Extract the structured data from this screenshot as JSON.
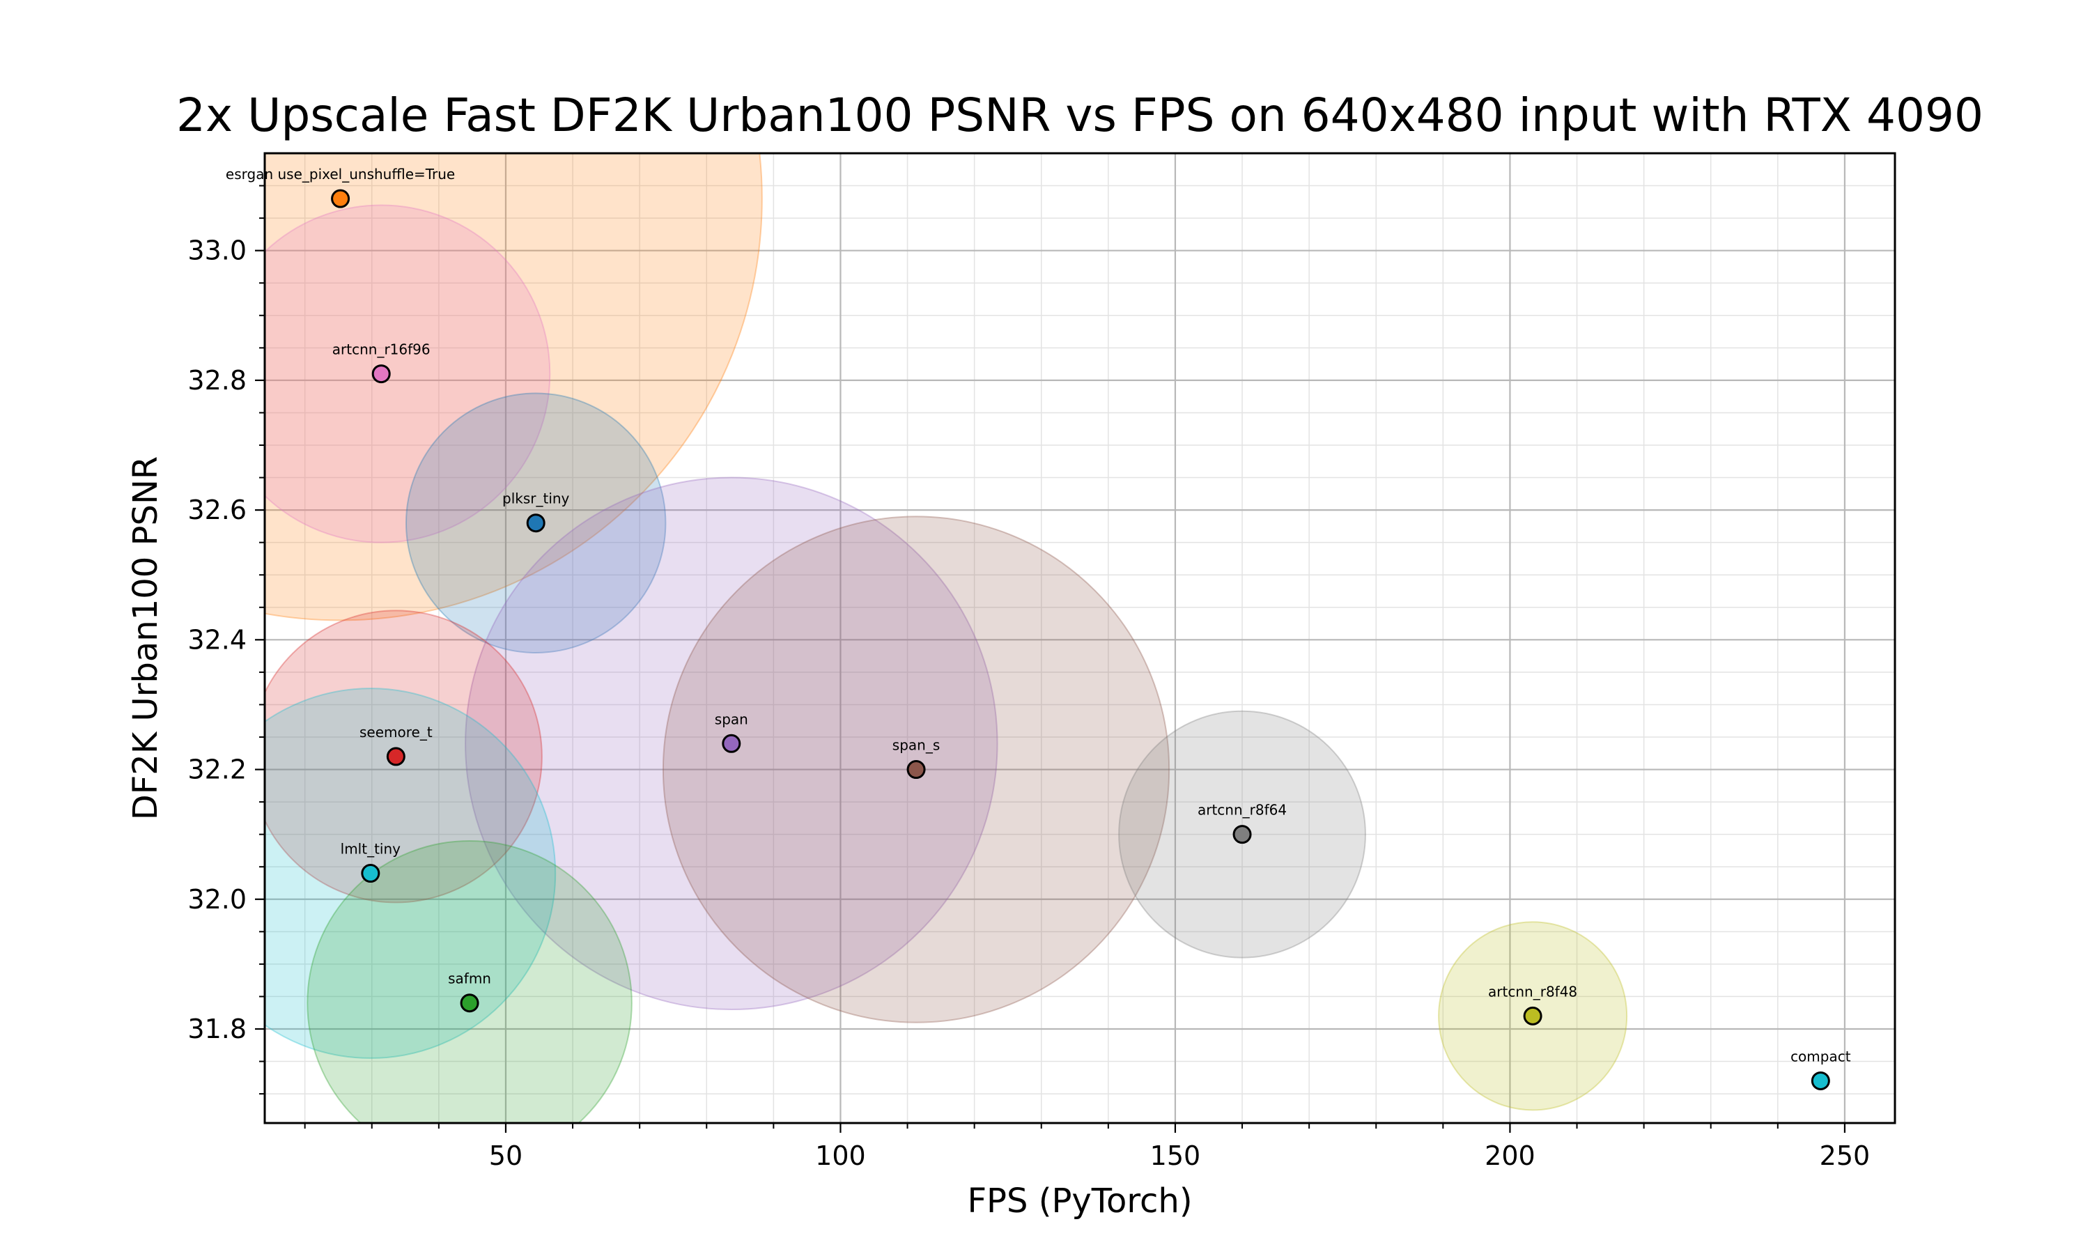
{
  "chart_data": {
    "type": "scatter",
    "title": "2x Upscale Fast DF2K Urban100 PSNR vs FPS on 640x480 input with RTX 4090",
    "xlabel": "FPS (PyTorch)",
    "ylabel": "DF2K Urban100 PSNR",
    "xlim": [
      14,
      257.5
    ],
    "ylim": [
      31.655,
      33.15
    ],
    "xticks": [
      50,
      100,
      150,
      200,
      250
    ],
    "yticks": [
      31.8,
      32.0,
      32.2,
      32.4,
      32.6,
      32.8,
      33.0
    ],
    "xtick_labels": [
      "50",
      "100",
      "150",
      "200",
      "250"
    ],
    "ytick_labels": [
      "31.8",
      "32.0",
      "32.2",
      "32.4",
      "32.6",
      "32.8",
      "33.0"
    ],
    "x_minor_step": 10,
    "y_minor_step": 0.05,
    "grid": true,
    "points": [
      {
        "label": "esrgan use_pixel_unshuffle=True",
        "x": 25.3,
        "y": 33.08,
        "bubble_size": 1.3,
        "color": "#ff7f0e"
      },
      {
        "label": "artcnn_r16f96",
        "x": 31.4,
        "y": 32.81,
        "bubble_size": 0.52,
        "color": "#e377c2"
      },
      {
        "label": "plksr_tiny",
        "x": 54.5,
        "y": 32.58,
        "bubble_size": 0.4,
        "color": "#1f77b4"
      },
      {
        "label": "span",
        "x": 83.7,
        "y": 32.24,
        "bubble_size": 0.82,
        "color": "#9467bd"
      },
      {
        "label": "span_s",
        "x": 111.3,
        "y": 32.2,
        "bubble_size": 0.78,
        "color": "#8c564b"
      },
      {
        "label": "seemore_t",
        "x": 33.6,
        "y": 32.22,
        "bubble_size": 0.45,
        "color": "#d62728"
      },
      {
        "label": "lmlt_tiny",
        "x": 29.8,
        "y": 32.04,
        "bubble_size": 0.57,
        "color": "#17becf"
      },
      {
        "label": "safmn",
        "x": 44.6,
        "y": 31.84,
        "bubble_size": 0.5,
        "color": "#2ca02c"
      },
      {
        "label": "artcnn_r8f64",
        "x": 160.0,
        "y": 32.1,
        "bubble_size": 0.38,
        "color": "#7f7f7f"
      },
      {
        "label": "artcnn_r8f48",
        "x": 203.4,
        "y": 31.82,
        "bubble_size": 0.29,
        "color": "#bcbd22"
      },
      {
        "label": "compact",
        "x": 246.4,
        "y": 31.72,
        "bubble_size": 0.0,
        "color": "#17becf"
      }
    ]
  }
}
